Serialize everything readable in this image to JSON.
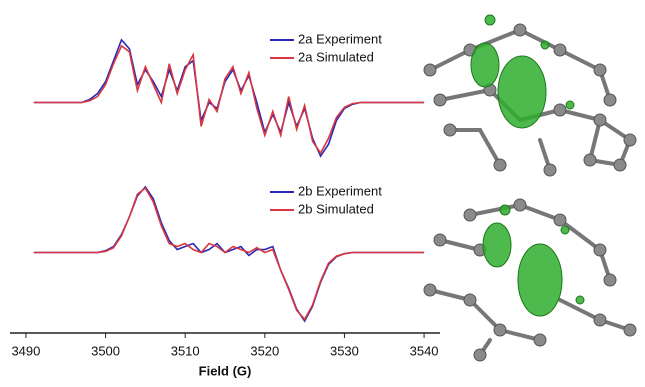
{
  "chart_data": [
    {
      "type": "line",
      "x": [
        3491,
        3492,
        3493,
        3494,
        3495,
        3496,
        3497,
        3498,
        3499,
        3500,
        3501,
        3502,
        3503,
        3504,
        3505,
        3506,
        3507,
        3508,
        3509,
        3510,
        3511,
        3512,
        3513,
        3514,
        3515,
        3516,
        3517,
        3518,
        3519,
        3520,
        3521,
        3522,
        3523,
        3524,
        3525,
        3526,
        3527,
        3528,
        3529,
        3530,
        3531,
        3532,
        3533,
        3534,
        3535,
        3536,
        3537,
        3538,
        3539,
        3540
      ],
      "xlim": [
        3488,
        3542
      ],
      "ylim": [
        -1.3,
        1.3
      ],
      "series": [
        {
          "name": "2a Experiment",
          "color": "#2a2ab8",
          "values": [
            0,
            0,
            0,
            0,
            0,
            0,
            0,
            0.05,
            0.15,
            0.35,
            0.7,
            1.05,
            0.9,
            0.3,
            0.55,
            0.35,
            0.1,
            0.55,
            0.2,
            0.6,
            0.7,
            -0.3,
            0.0,
            -0.1,
            0.35,
            0.55,
            0.2,
            0.45,
            0.0,
            -0.5,
            -0.2,
            -0.5,
            0.0,
            -0.4,
            -0.1,
            -0.6,
            -0.9,
            -0.7,
            -0.3,
            -0.1,
            -0.03,
            0,
            0,
            0,
            0,
            0,
            0,
            0,
            0,
            0
          ]
        },
        {
          "name": "2a Simulated",
          "color": "#d9363e",
          "values": [
            0,
            0,
            0,
            0,
            0,
            0,
            0,
            0.03,
            0.1,
            0.3,
            0.65,
            0.95,
            0.85,
            0.2,
            0.6,
            0.3,
            0.0,
            0.65,
            0.15,
            0.55,
            0.8,
            -0.4,
            0.05,
            -0.15,
            0.4,
            0.6,
            0.15,
            0.5,
            -0.1,
            -0.55,
            -0.15,
            -0.55,
            0.1,
            -0.45,
            -0.05,
            -0.65,
            -0.85,
            -0.6,
            -0.25,
            -0.08,
            -0.02,
            0,
            0,
            0,
            0,
            0,
            0,
            0,
            0,
            0
          ]
        }
      ]
    },
    {
      "type": "line",
      "x": [
        3491,
        3492,
        3493,
        3494,
        3495,
        3496,
        3497,
        3498,
        3499,
        3500,
        3501,
        3502,
        3503,
        3504,
        3505,
        3506,
        3507,
        3508,
        3509,
        3510,
        3511,
        3512,
        3513,
        3514,
        3515,
        3516,
        3517,
        3518,
        3519,
        3520,
        3521,
        3522,
        3523,
        3524,
        3525,
        3526,
        3527,
        3528,
        3529,
        3530,
        3531,
        3532,
        3533,
        3534,
        3535,
        3536,
        3537,
        3538,
        3539,
        3540
      ],
      "xlim": [
        3488,
        3542
      ],
      "ylim": [
        -1.3,
        1.3
      ],
      "xticks": [
        3490,
        3500,
        3510,
        3520,
        3530,
        3540
      ],
      "x_label": "Field (G)",
      "series": [
        {
          "name": "2b Experiment",
          "color": "#2a2ab8",
          "values": [
            0,
            0,
            0,
            0,
            0,
            0,
            0,
            0,
            0,
            0.03,
            0.1,
            0.3,
            0.6,
            0.95,
            1.1,
            0.9,
            0.5,
            0.2,
            0.05,
            0.1,
            0.15,
            0.0,
            0.05,
            0.15,
            0.0,
            0.05,
            0.1,
            -0.05,
            0.05,
            0.05,
            0.1,
            -0.3,
            -0.6,
            -0.95,
            -1.15,
            -0.9,
            -0.5,
            -0.2,
            -0.07,
            -0.02,
            0,
            0,
            0,
            0,
            0,
            0,
            0,
            0,
            0,
            0
          ]
        },
        {
          "name": "2b Simulated",
          "color": "#d9363e",
          "values": [
            0,
            0,
            0,
            0,
            0,
            0,
            0,
            0,
            0,
            0.02,
            0.08,
            0.28,
            0.6,
            0.98,
            1.08,
            0.85,
            0.45,
            0.15,
            0.1,
            0.15,
            0.05,
            0.0,
            0.15,
            0.1,
            0.0,
            0.1,
            0.05,
            0.0,
            0.08,
            0.0,
            0.05,
            -0.3,
            -0.62,
            -0.97,
            -1.12,
            -0.88,
            -0.48,
            -0.18,
            -0.06,
            -0.02,
            0,
            0,
            0,
            0,
            0,
            0,
            0,
            0,
            0,
            0
          ]
        }
      ]
    }
  ]
}
